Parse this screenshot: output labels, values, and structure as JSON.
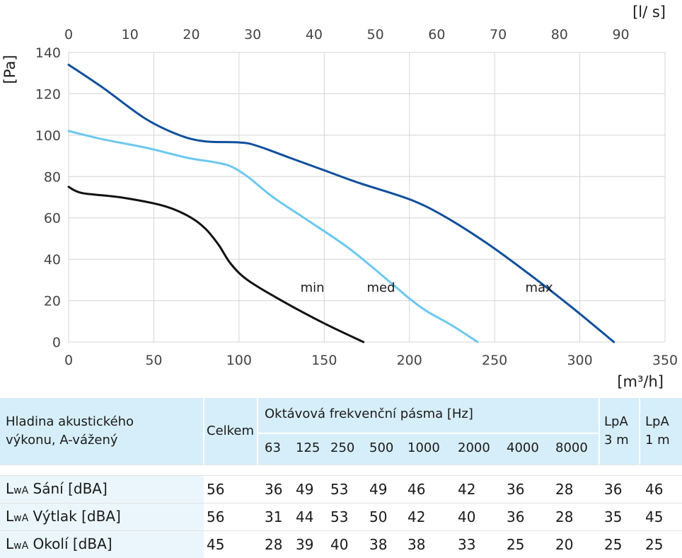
{
  "chart_data": {
    "type": "line",
    "x_unit_bottom": "[m³/h]",
    "x_unit_top": "[l/ s]",
    "y_unit": "[Pa]",
    "xlim": [
      0,
      350
    ],
    "ylim": [
      0,
      140
    ],
    "xlim_top": [
      0,
      97.2
    ],
    "x_ticks": [
      "0",
      "50",
      "100",
      "150",
      "200",
      "250",
      "300",
      "350"
    ],
    "x_top_ticks": [
      "0",
      "10",
      "20",
      "30",
      "40",
      "50",
      "60",
      "70",
      "80",
      "90"
    ],
    "y_ticks": [
      "0",
      "20",
      "40",
      "60",
      "80",
      "100",
      "120",
      "140"
    ],
    "grid": true,
    "series": [
      {
        "name": "min",
        "color": "#111111",
        "x": [
          0,
          8,
          30,
          55,
          70,
          80,
          88,
          95,
          105,
          125,
          150,
          173
        ],
        "y": [
          75,
          72,
          70,
          66,
          61,
          55,
          47,
          38,
          30,
          20,
          9,
          0
        ]
      },
      {
        "name": "med",
        "color": "#6cc8f0",
        "x": [
          0,
          20,
          45,
          70,
          85,
          95,
          105,
          120,
          140,
          165,
          190,
          200,
          210,
          225,
          240
        ],
        "y": [
          102,
          98,
          94,
          89,
          87,
          85,
          80,
          70,
          59,
          45,
          28,
          21,
          15,
          8,
          0
        ]
      },
      {
        "name": "max",
        "color": "#0e4f9c",
        "x": [
          0,
          20,
          45,
          65,
          80,
          100,
          110,
          130,
          150,
          170,
          200,
          220,
          245,
          270,
          295,
          320
        ],
        "y": [
          134,
          123,
          108,
          100,
          97,
          96.5,
          95,
          89,
          83,
          77,
          69,
          61,
          48,
          33,
          17,
          0
        ]
      }
    ],
    "series_label_positions": [
      {
        "name": "min",
        "x": 136,
        "y": 24
      },
      {
        "name": "med",
        "x": 175,
        "y": 24
      },
      {
        "name": "max",
        "x": 268,
        "y": 24
      }
    ]
  },
  "table": {
    "row_header_line1": "Hladina akustického",
    "row_header_line2": "výkonu, A-vážený",
    "total_header": "Celkem",
    "band_header": "Oktávová frekvenční pásma [Hz]",
    "bands": [
      "63",
      "125",
      "250",
      "500",
      "1000",
      "2000",
      "4000",
      "8000"
    ],
    "lpa3_line1": "LpA",
    "lpa3_line2": "3 m",
    "lpa1_line1": "LpA",
    "lpa1_line2": "1 m",
    "rows": [
      {
        "prefix": "L",
        "sub": "wA",
        "label": " Sání [dBA]",
        "total": "56",
        "bands": [
          "36",
          "49",
          "53",
          "49",
          "46",
          "42",
          "36",
          "28"
        ],
        "lpa3": "36",
        "lpa1": "46"
      },
      {
        "prefix": "L",
        "sub": "wA",
        "label": " Výtlak [dBA]",
        "total": "56",
        "bands": [
          "31",
          "44",
          "53",
          "50",
          "42",
          "40",
          "36",
          "28"
        ],
        "lpa3": "35",
        "lpa1": "45"
      },
      {
        "prefix": "L",
        "sub": "wA",
        "label": " Okolí [dBA]",
        "total": "45",
        "bands": [
          "28",
          "39",
          "40",
          "38",
          "38",
          "33",
          "25",
          "20"
        ],
        "lpa3": "25",
        "lpa1": "25"
      }
    ]
  }
}
